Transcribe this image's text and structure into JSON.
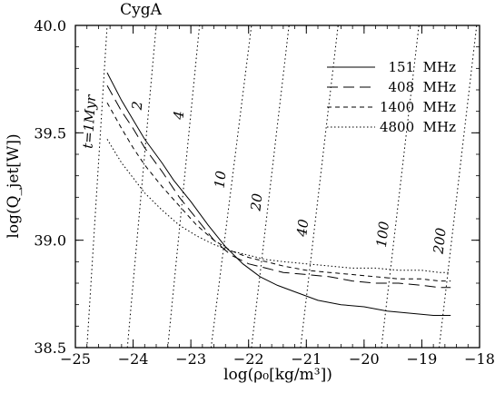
{
  "chart_data": {
    "type": "line",
    "title": "CygA",
    "xlabel": "log(ρ₀[kg/m³])",
    "ylabel": "log(Q_jet[W])",
    "xlim": [
      -25,
      -18
    ],
    "ylim": [
      38.5,
      40.0
    ],
    "x_ticks": [
      -25,
      -24,
      -23,
      -22,
      -21,
      -20,
      -19,
      -18
    ],
    "y_ticks": [
      38.5,
      39.0,
      39.5,
      40.0
    ],
    "grid": false,
    "legend_position": "top-right",
    "series": [
      {
        "name": "151  MHz",
        "style": "solid",
        "x": [
          -24.45,
          -24.2,
          -24.0,
          -23.8,
          -23.5,
          -23.3,
          -23.0,
          -22.7,
          -22.4,
          -22.1,
          -21.8,
          -21.5,
          -21.2,
          -20.8,
          -20.4,
          -20.0,
          -19.6,
          -19.2,
          -18.8,
          -18.5
        ],
        "y": [
          39.78,
          39.65,
          39.56,
          39.47,
          39.36,
          39.28,
          39.18,
          39.07,
          38.97,
          38.89,
          38.83,
          38.79,
          38.76,
          38.72,
          38.7,
          38.69,
          38.67,
          38.66,
          38.65,
          38.65
        ]
      },
      {
        "name": "408  MHz",
        "style": "dashed",
        "x": [
          -24.45,
          -24.2,
          -24.0,
          -23.8,
          -23.5,
          -23.2,
          -22.9,
          -22.6,
          -22.3,
          -22.0,
          -21.7,
          -21.4,
          -21.0,
          -20.6,
          -20.2,
          -19.8,
          -19.4,
          -19.0,
          -18.7,
          -18.5
        ],
        "y": [
          39.72,
          39.6,
          39.52,
          39.43,
          39.32,
          39.2,
          39.1,
          39.0,
          38.93,
          38.89,
          38.87,
          38.85,
          38.84,
          38.83,
          38.81,
          38.8,
          38.8,
          38.79,
          38.78,
          38.78
        ]
      },
      {
        "name": "1400  MHz",
        "style": "short-dashed",
        "x": [
          -24.45,
          -24.2,
          -24.0,
          -23.8,
          -23.5,
          -23.2,
          -22.9,
          -22.6,
          -22.3,
          -22.0,
          -21.7,
          -21.4,
          -21.0,
          -20.6,
          -20.2,
          -19.8,
          -19.4,
          -19.0,
          -18.7,
          -18.5
        ],
        "y": [
          39.64,
          39.52,
          39.43,
          39.35,
          39.25,
          39.16,
          39.07,
          39.0,
          38.95,
          38.92,
          38.9,
          38.88,
          38.86,
          38.85,
          38.84,
          38.83,
          38.82,
          38.82,
          38.81,
          38.81
        ]
      },
      {
        "name": "4800  MHz",
        "style": "dotted",
        "x": [
          -24.45,
          -24.2,
          -24.0,
          -23.8,
          -23.5,
          -23.2,
          -22.9,
          -22.6,
          -22.3,
          -22.0,
          -21.7,
          -21.4,
          -21.0,
          -20.6,
          -20.2,
          -19.8,
          -19.4,
          -19.0,
          -18.7,
          -18.5
        ],
        "y": [
          39.47,
          39.36,
          39.29,
          39.22,
          39.14,
          39.07,
          39.02,
          38.98,
          38.95,
          38.93,
          38.91,
          38.9,
          38.89,
          38.88,
          38.87,
          38.87,
          38.86,
          38.86,
          38.85,
          38.85
        ]
      }
    ],
    "isochrones": [
      {
        "label": "t=1Myr",
        "x_at_ymin": -24.8,
        "x_at_ymax": -24.45
      },
      {
        "label": "2",
        "x_at_ymin": -24.1,
        "x_at_ymax": -23.6
      },
      {
        "label": "4",
        "x_at_ymin": -23.4,
        "x_at_ymax": -22.85
      },
      {
        "label": "10",
        "x_at_ymin": -22.65,
        "x_at_ymax": -21.95
      },
      {
        "label": "20",
        "x_at_ymin": -21.95,
        "x_at_ymax": -21.3
      },
      {
        "label": "40",
        "x_at_ymin": -21.1,
        "x_at_ymax": -20.45
      },
      {
        "label": "100",
        "x_at_ymin": -19.7,
        "x_at_ymax": -19.05
      },
      {
        "label": "200",
        "x_at_ymin": -18.7,
        "x_at_ymax": -18.05
      }
    ]
  }
}
